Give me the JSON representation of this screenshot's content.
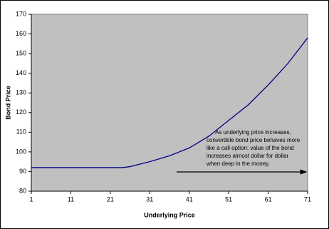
{
  "chart_data": {
    "type": "line",
    "x_label": "Underlying Price",
    "y_label": "Bond Price",
    "annotation": [
      "As underlying price increases,",
      "convertible bond price behaves more",
      "like a call option: value of the bond",
      "increases almost dollar for dollar",
      "when deep in the money."
    ],
    "x": [
      1,
      11,
      21,
      24,
      26,
      31,
      36,
      41,
      46,
      51,
      56,
      61,
      66,
      71
    ],
    "series": [
      {
        "color": "#000080",
        "values": [
          92,
          92,
          92,
          92,
          92.5,
          95,
          98,
          102,
          108,
          116,
          124,
          134,
          145,
          158
        ]
      }
    ],
    "xlim": [
      1,
      71
    ],
    "xticks": [
      1,
      11,
      21,
      31,
      41,
      51,
      61,
      71
    ],
    "ylim": [
      80,
      170
    ],
    "yticks": [
      80,
      90,
      100,
      110,
      120,
      130,
      140,
      150,
      160,
      170
    ],
    "plot_background": "#c0c0c0"
  }
}
